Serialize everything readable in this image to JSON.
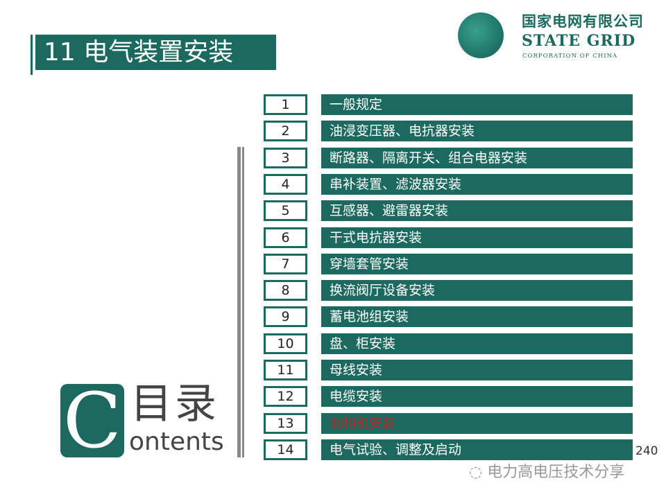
{
  "title": "11 电气装置安装",
  "logo": {
    "cn": "国家电网有限公司",
    "en": "STATE GRID",
    "sub": "CORPORATION OF CHINA"
  },
  "items": [
    {
      "num": "1",
      "label": "一般规定"
    },
    {
      "num": "2",
      "label": "油浸变压器、电抗器安装"
    },
    {
      "num": "3",
      "label": "断路器、隔离开关、组合电器安装"
    },
    {
      "num": "4",
      "label": "串补装置、滤波器安装"
    },
    {
      "num": "5",
      "label": "互感器、避雷器安装"
    },
    {
      "num": "6",
      "label": "干式电抗器安装"
    },
    {
      "num": "7",
      "label": "穿墙套管安装"
    },
    {
      "num": "8",
      "label": "换流阀厅设备安装"
    },
    {
      "num": "9",
      "label": "蓄电池组安装"
    },
    {
      "num": "10",
      "label": "盘、柜安装"
    },
    {
      "num": "11",
      "label": "母线安装"
    },
    {
      "num": "12",
      "label": "电缆安装"
    },
    {
      "num": "13",
      "label": "调相机安装",
      "highlight": true
    },
    {
      "num": "14",
      "label": "电气试验、调整及启动"
    }
  ],
  "contents_logo": {
    "letter": "C",
    "cn": "目录",
    "en": "ontents"
  },
  "watermark": "电力高电压技术分享",
  "page_number": "240",
  "colors": {
    "primary": "#1c6a5f",
    "highlight_text": "#b52a2a"
  }
}
